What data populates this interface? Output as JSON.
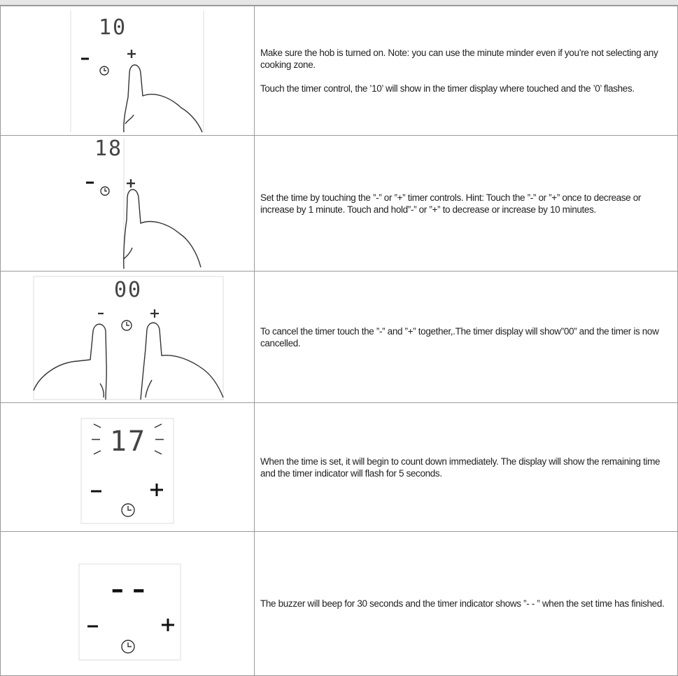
{
  "rows": [
    {
      "display": "10",
      "text": [
        "Make sure the hob is turned on. Note: you can use the minute minder even if you’re not selecting any cooking zone.",
        "Touch the timer control, the ’10’ will show in the timer display where touched and the ’0’ flashes."
      ]
    },
    {
      "display": "18",
      "text": [
        "Set the time by touching the ”-” or ”+” timer controls. Hint: Touch the ”-” or ”+” once to decrease or increase by 1 minute. Touch and hold”-” or ”+” to decrease or increase by 10 minutes."
      ]
    },
    {
      "display": "00",
      "text": [
        "To cancel the timer touch the ”-” and ”+” together,.The timer display will show”00” and the timer is now cancelled."
      ]
    },
    {
      "display": "17",
      "text": [
        "When the time is set, it will begin to count down immediately. The display will show the remaining time and the timer indicator will flash for 5 seconds."
      ]
    },
    {
      "display": "– –",
      "text": [
        "The buzzer will beep for 30 seconds and the timer indicator shows ”- - ” when the set time has finished."
      ]
    }
  ]
}
